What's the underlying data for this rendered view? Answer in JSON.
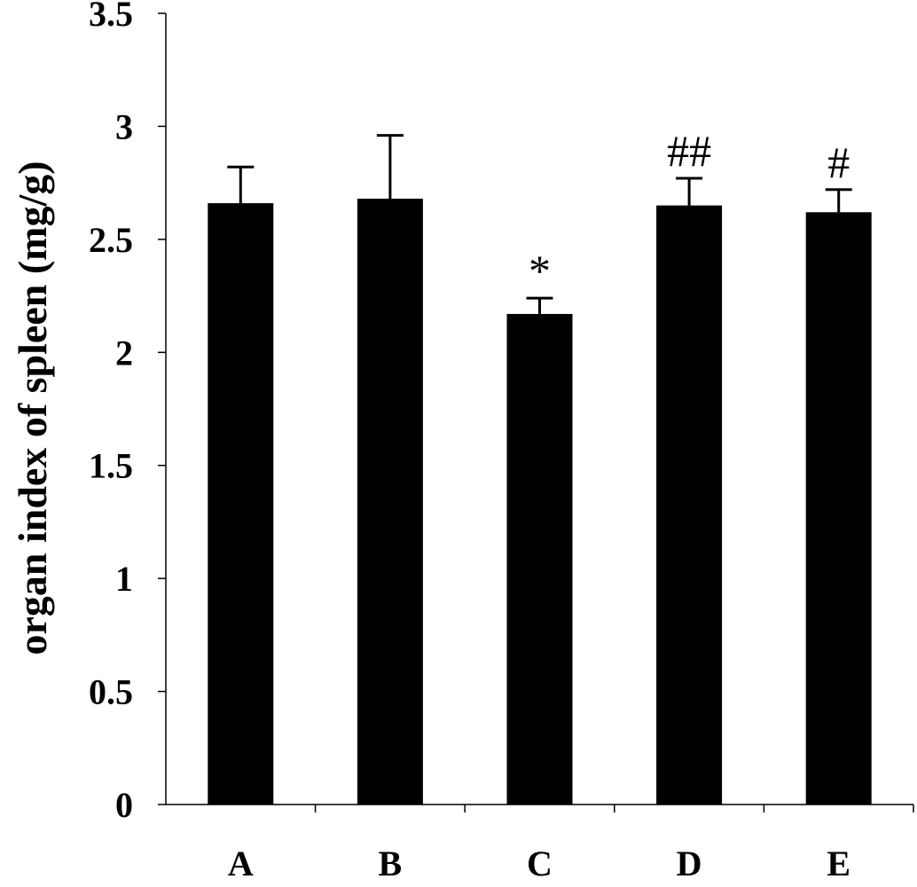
{
  "chart_data": {
    "type": "bar",
    "title": "",
    "xlabel": "",
    "ylabel": "organ index of spleen (mg/g)",
    "ylim": [
      0,
      3.5
    ],
    "y_ticks": [
      "0",
      "0.5",
      "1",
      "1.5",
      "2",
      "2.5",
      "3",
      "3.5"
    ],
    "categories": [
      "A",
      "B",
      "C",
      "D",
      "E"
    ],
    "values": [
      2.66,
      2.68,
      2.17,
      2.65,
      2.62
    ],
    "errors": [
      0.16,
      0.28,
      0.07,
      0.12,
      0.1
    ],
    "annotations": [
      "",
      "",
      "*",
      "##",
      "#"
    ],
    "bar_color": "#000000",
    "grid": false,
    "legend": "none"
  }
}
